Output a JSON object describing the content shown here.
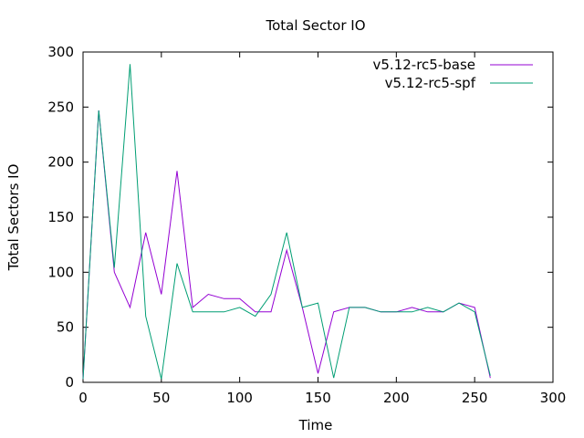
{
  "chart_data": {
    "type": "line",
    "title": "Total Sector IO",
    "xlabel": "Time",
    "ylabel": "Total Sectors IO",
    "xlim": [
      0,
      300
    ],
    "ylim": [
      0,
      300
    ],
    "xticks": [
      0,
      50,
      100,
      150,
      200,
      250,
      300
    ],
    "yticks": [
      0,
      50,
      100,
      150,
      200,
      250,
      300
    ],
    "grid": false,
    "legend_position": "top-right",
    "series": [
      {
        "name": "v5.12-rc5-base",
        "color": "#9400d3",
        "x": [
          0,
          10,
          20,
          30,
          40,
          50,
          60,
          70,
          80,
          90,
          100,
          110,
          120,
          130,
          140,
          150,
          160,
          170,
          180,
          190,
          200,
          210,
          220,
          230,
          240,
          250,
          260
        ],
        "y": [
          3,
          247,
          100,
          68,
          136,
          80,
          192,
          68,
          80,
          76,
          76,
          64,
          64,
          120,
          68,
          8,
          64,
          68,
          68,
          64,
          64,
          68,
          64,
          64,
          72,
          68,
          4
        ]
      },
      {
        "name": "v5.12-rc5-spf",
        "color": "#009e73",
        "x": [
          0,
          10,
          20,
          30,
          40,
          50,
          60,
          70,
          80,
          90,
          100,
          110,
          120,
          130,
          140,
          150,
          160,
          170,
          180,
          190,
          200,
          210,
          220,
          230,
          240,
          250,
          260
        ],
        "y": [
          3,
          247,
          104,
          289,
          60,
          3,
          108,
          64,
          64,
          64,
          68,
          60,
          80,
          136,
          68,
          72,
          4,
          68,
          68,
          64,
          64,
          64,
          68,
          64,
          72,
          64,
          6
        ]
      }
    ]
  }
}
